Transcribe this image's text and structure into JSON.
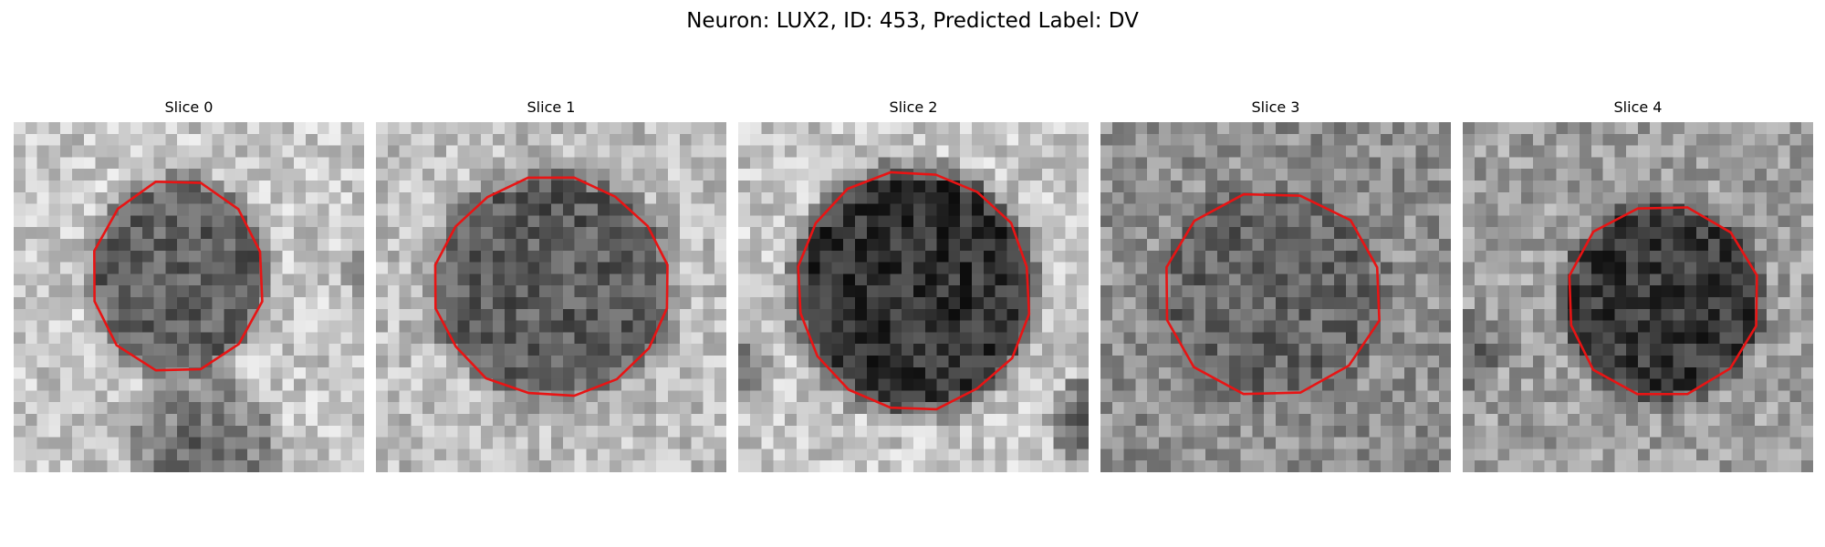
{
  "figure": {
    "title": "Neuron: LUX2, ID: 453, Predicted Label: DV"
  },
  "slices": [
    {
      "label": "Slice 0"
    },
    {
      "label": "Slice 1"
    },
    {
      "label": "Slice 2"
    },
    {
      "label": "Slice 3"
    },
    {
      "label": "Slice 4"
    }
  ],
  "colors": {
    "contour": "#e81414",
    "background": "#ffffff"
  }
}
